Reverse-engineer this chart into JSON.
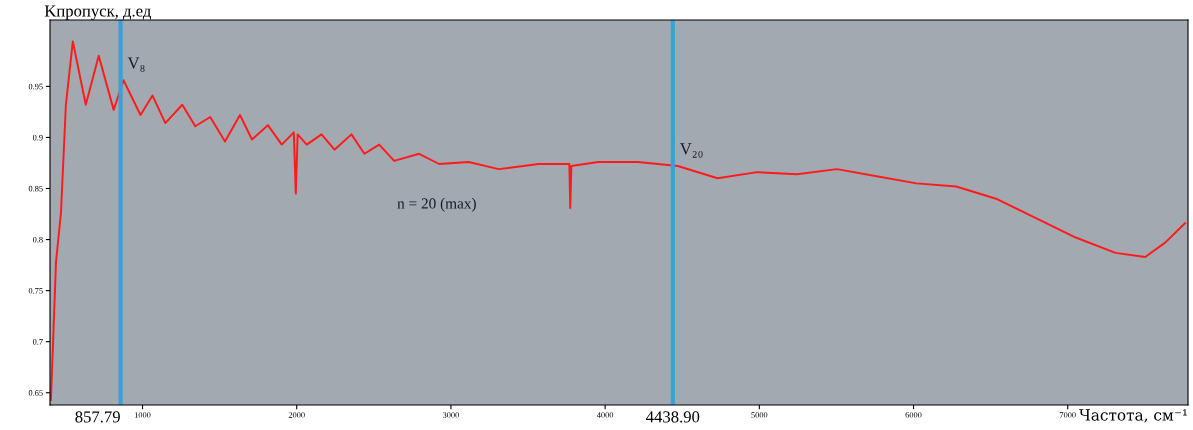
{
  "chart_data": {
    "type": "line",
    "ylabel": "Kпропуск, д.ед",
    "xlabel": "Частота, см⁻¹",
    "x": [
      406,
      439,
      471,
      503,
      548,
      632,
      716,
      813,
      877,
      987,
      1065,
      1148,
      1258,
      1342,
      1439,
      1535,
      1632,
      1710,
      1813,
      1903,
      1981,
      1994,
      2006,
      2065,
      2161,
      2245,
      2355,
      2439,
      2535,
      2632,
      2794,
      2923,
      3116,
      3310,
      3568,
      3768,
      3774,
      3781,
      3955,
      4213,
      4471,
      4729,
      4987,
      5245,
      5503,
      5761,
      6019,
      6277,
      6535,
      6794,
      7052,
      7310,
      7503,
      7632,
      7761
    ],
    "series": [
      {
        "color": "#ff1a1a",
        "values": [
          0.643,
          0.778,
          0.826,
          0.932,
          0.994,
          0.932,
          0.98,
          0.927,
          0.956,
          0.922,
          0.941,
          0.914,
          0.932,
          0.911,
          0.92,
          0.896,
          0.922,
          0.898,
          0.912,
          0.893,
          0.905,
          0.845,
          0.903,
          0.893,
          0.903,
          0.888,
          0.903,
          0.884,
          0.893,
          0.877,
          0.884,
          0.874,
          0.876,
          0.869,
          0.874,
          0.874,
          0.831,
          0.872,
          0.876,
          0.876,
          0.872,
          0.86,
          0.866,
          0.864,
          0.869,
          0.862,
          0.855,
          0.852,
          0.84,
          0.821,
          0.802,
          0.787,
          0.783,
          0.797,
          0.816
        ]
      }
    ],
    "xlim": [
      400,
      7780
    ],
    "ylim": [
      0.638,
      1.015
    ],
    "xticks": [
      1000,
      2000,
      3000,
      4000,
      5000,
      6000,
      7000
    ],
    "yticks": [
      0.65,
      0.7,
      0.75,
      0.8,
      0.85,
      0.9,
      0.95
    ],
    "ref_lines": [
      {
        "axis": "x",
        "value": 857.79,
        "label": "857.79",
        "color": "#3aa0d8"
      },
      {
        "axis": "x",
        "value": 4438.9,
        "label": "4438.90",
        "color": "#3aa0d8"
      }
    ],
    "annotations": [
      {
        "text": "V₈",
        "x": 857.79,
        "y": 0.96
      },
      {
        "text": "V₂₀",
        "x": 4438.9,
        "y": 0.876
      },
      "n = 20 (max)"
    ],
    "grid": false,
    "legend": false
  }
}
